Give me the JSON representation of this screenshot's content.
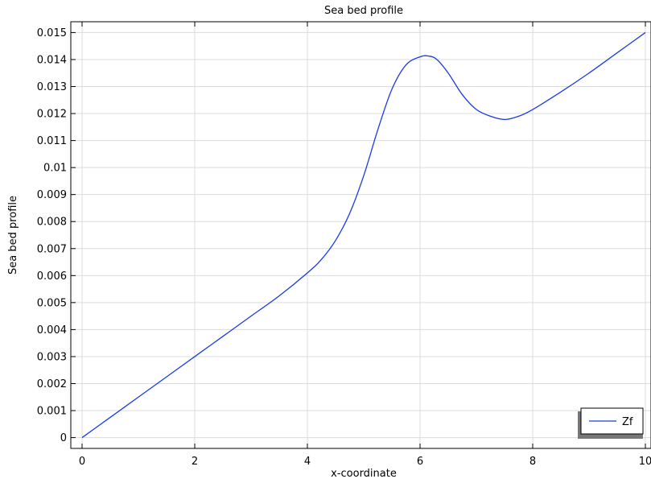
{
  "chart_data": {
    "type": "line",
    "title": "Sea bed profile",
    "xlabel": "x-coordinate",
    "ylabel": "Sea bed profile",
    "xlim": [
      -0.2,
      10.1
    ],
    "ylim": [
      -0.0004,
      0.0154
    ],
    "xticks": [
      0,
      2,
      4,
      6,
      8,
      10
    ],
    "yticks": [
      0,
      0.001,
      0.002,
      0.003,
      0.004,
      0.005,
      0.006,
      0.007,
      0.008,
      0.009,
      0.01,
      0.011,
      0.012,
      0.013,
      0.014,
      0.015
    ],
    "xtick_labels": [
      "0",
      "2",
      "4",
      "6",
      "8",
      "10"
    ],
    "ytick_labels": [
      "0",
      "0.001",
      "0.002",
      "0.003",
      "0.004",
      "0.005",
      "0.006",
      "0.007",
      "0.008",
      "0.009",
      "0.01",
      "0.011",
      "0.012",
      "0.013",
      "0.014",
      "0.015"
    ],
    "grid": true,
    "legend_position": "bottom-right",
    "series": [
      {
        "name": "Zf",
        "color": "#1a3be6",
        "x": [
          0,
          0.5,
          1,
          1.5,
          2,
          2.5,
          3,
          3.5,
          4,
          4.25,
          4.5,
          4.75,
          5,
          5.25,
          5.5,
          5.75,
          6,
          6.15,
          6.3,
          6.5,
          6.75,
          7,
          7.25,
          7.5,
          7.75,
          8,
          8.5,
          9,
          9.5,
          10
        ],
        "y": [
          0,
          0.00075,
          0.0015,
          0.00225,
          0.003,
          0.00375,
          0.0045,
          0.00525,
          0.0061,
          0.0066,
          0.0073,
          0.0083,
          0.0097,
          0.0114,
          0.0129,
          0.0138,
          0.0141,
          0.01413,
          0.014,
          0.0135,
          0.0127,
          0.01215,
          0.0119,
          0.01178,
          0.0119,
          0.01215,
          0.0128,
          0.0135,
          0.01425,
          0.015
        ]
      }
    ]
  }
}
